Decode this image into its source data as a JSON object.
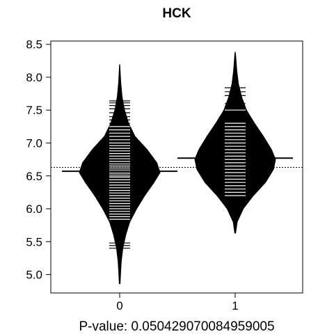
{
  "chart_data": {
    "type": "beanplot",
    "title": "HCK",
    "xlabel": "P-value: 0.050429070084959005",
    "ylabel": "",
    "ylim": [
      4.72,
      8.55
    ],
    "yticks": [
      5.0,
      5.5,
      6.0,
      6.5,
      7.0,
      7.5,
      8.0,
      8.5
    ],
    "ytick_labels": [
      "5.0",
      "5.5",
      "6.0",
      "6.5",
      "7.0",
      "7.5",
      "8.0",
      "8.5"
    ],
    "categories": [
      "0",
      "1"
    ],
    "overall_mean": 6.63,
    "groups": [
      {
        "category": "0",
        "mean": 6.57,
        "density": [
          [
            4.86,
            0.01
          ],
          [
            5.0,
            0.02
          ],
          [
            5.2,
            0.04
          ],
          [
            5.4,
            0.08
          ],
          [
            5.6,
            0.15
          ],
          [
            5.8,
            0.25
          ],
          [
            6.0,
            0.42
          ],
          [
            6.2,
            0.62
          ],
          [
            6.4,
            0.85
          ],
          [
            6.55,
            1.0
          ],
          [
            6.7,
            0.92
          ],
          [
            6.9,
            0.68
          ],
          [
            7.1,
            0.38
          ],
          [
            7.3,
            0.22
          ],
          [
            7.5,
            0.12
          ],
          [
            7.7,
            0.06
          ],
          [
            7.9,
            0.03
          ],
          [
            8.1,
            0.01
          ],
          [
            8.19,
            0.004
          ]
        ],
        "observations": [
          5.4,
          5.44,
          5.48,
          5.8,
          5.84,
          5.88,
          5.92,
          5.96,
          6.0,
          6.04,
          6.08,
          6.12,
          6.16,
          6.2,
          6.24,
          6.28,
          6.32,
          6.36,
          6.4,
          6.44,
          6.48,
          6.5,
          6.53,
          6.56,
          6.59,
          6.62,
          6.65,
          6.68,
          6.72,
          6.76,
          6.8,
          6.84,
          6.88,
          6.92,
          6.96,
          7.0,
          7.05,
          7.1,
          7.15,
          7.2,
          7.25,
          7.3,
          7.35,
          7.4,
          7.46,
          7.52,
          7.57,
          7.61,
          7.64
        ]
      },
      {
        "category": "1",
        "mean": 6.77,
        "density": [
          [
            5.63,
            0.01
          ],
          [
            5.8,
            0.05
          ],
          [
            6.0,
            0.2
          ],
          [
            6.2,
            0.45
          ],
          [
            6.4,
            0.75
          ],
          [
            6.6,
            0.95
          ],
          [
            6.75,
            1.0
          ],
          [
            6.9,
            0.9
          ],
          [
            7.1,
            0.7
          ],
          [
            7.3,
            0.48
          ],
          [
            7.5,
            0.28
          ],
          [
            7.7,
            0.16
          ],
          [
            7.9,
            0.08
          ],
          [
            8.1,
            0.04
          ],
          [
            8.3,
            0.015
          ],
          [
            8.38,
            0.004
          ]
        ],
        "observations": [
          6.2,
          6.25,
          6.3,
          6.35,
          6.4,
          6.45,
          6.5,
          6.55,
          6.6,
          6.65,
          6.7,
          6.75,
          6.8,
          6.85,
          6.9,
          6.95,
          7.0,
          7.05,
          7.1,
          7.15,
          7.2,
          7.25,
          7.3,
          7.5,
          7.55,
          7.6,
          7.72,
          7.78,
          7.84
        ]
      }
    ]
  }
}
